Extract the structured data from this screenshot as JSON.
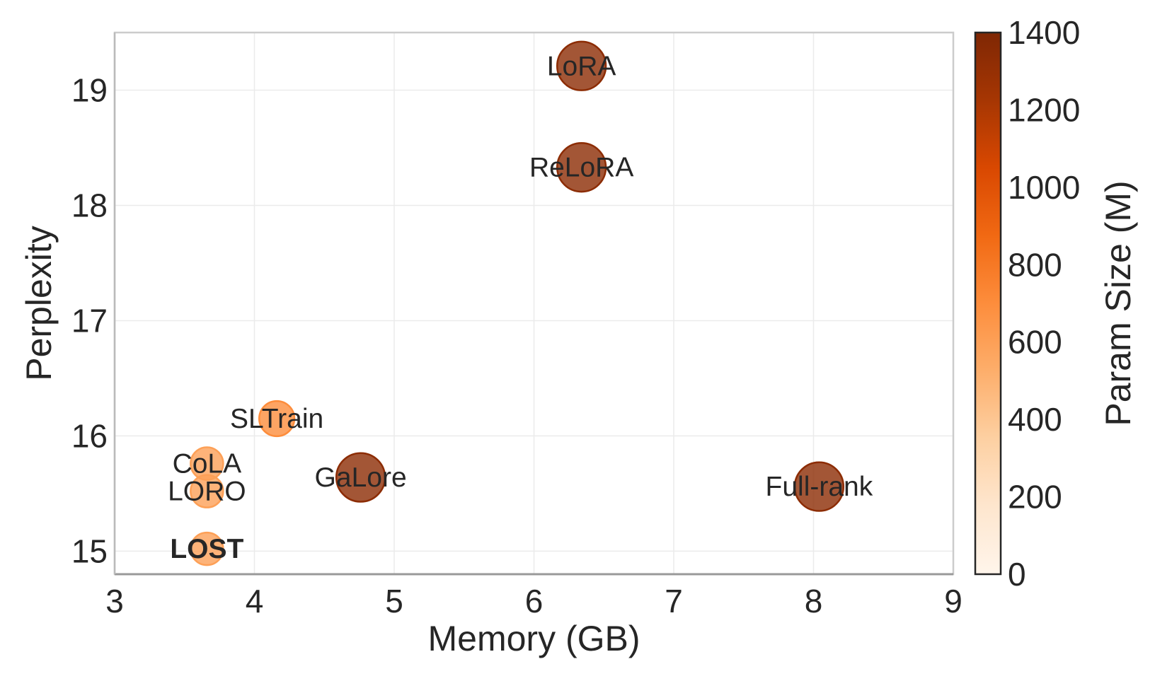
{
  "chart_data": {
    "type": "scatter",
    "xlabel": "Memory (GB)",
    "ylabel": "Perplexity",
    "xlim": [
      3,
      9
    ],
    "ylim": [
      14.8,
      19.5
    ],
    "xticks": [
      3,
      4,
      5,
      6,
      7,
      8,
      9
    ],
    "yticks": [
      15,
      16,
      17,
      18,
      19
    ],
    "grid": true,
    "colorbar": {
      "label": "Param Size (M)",
      "range": [
        0,
        1400
      ],
      "ticks": [
        0,
        200,
        400,
        600,
        800,
        1000,
        1200,
        1400
      ],
      "colormap": "Oranges",
      "colors": [
        "#fff5eb",
        "#fee6ce",
        "#fdd0a2",
        "#fdae6b",
        "#fd8d3c",
        "#f16913",
        "#d94801",
        "#a63603",
        "#7f2704"
      ]
    },
    "points": [
      {
        "name": "LoRA",
        "memory_gb": 6.34,
        "perplexity": 19.21,
        "param_size_m": 1340,
        "bold": false
      },
      {
        "name": "ReLoRA",
        "memory_gb": 6.34,
        "perplexity": 18.33,
        "param_size_m": 1340,
        "bold": false
      },
      {
        "name": "SLTrain",
        "memory_gb": 4.16,
        "perplexity": 16.15,
        "param_size_m": 700,
        "bold": false
      },
      {
        "name": "CoLA",
        "memory_gb": 3.66,
        "perplexity": 15.76,
        "param_size_m": 600,
        "bold": false
      },
      {
        "name": "LORO",
        "memory_gb": 3.66,
        "perplexity": 15.52,
        "param_size_m": 600,
        "bold": false
      },
      {
        "name": "GaLore",
        "memory_gb": 4.76,
        "perplexity": 15.64,
        "param_size_m": 1340,
        "bold": false
      },
      {
        "name": "Full-rank",
        "memory_gb": 8.04,
        "perplexity": 15.56,
        "param_size_m": 1340,
        "bold": false
      },
      {
        "name": "LOST",
        "memory_gb": 3.66,
        "perplexity": 15.02,
        "param_size_m": 600,
        "bold": true
      }
    ]
  }
}
